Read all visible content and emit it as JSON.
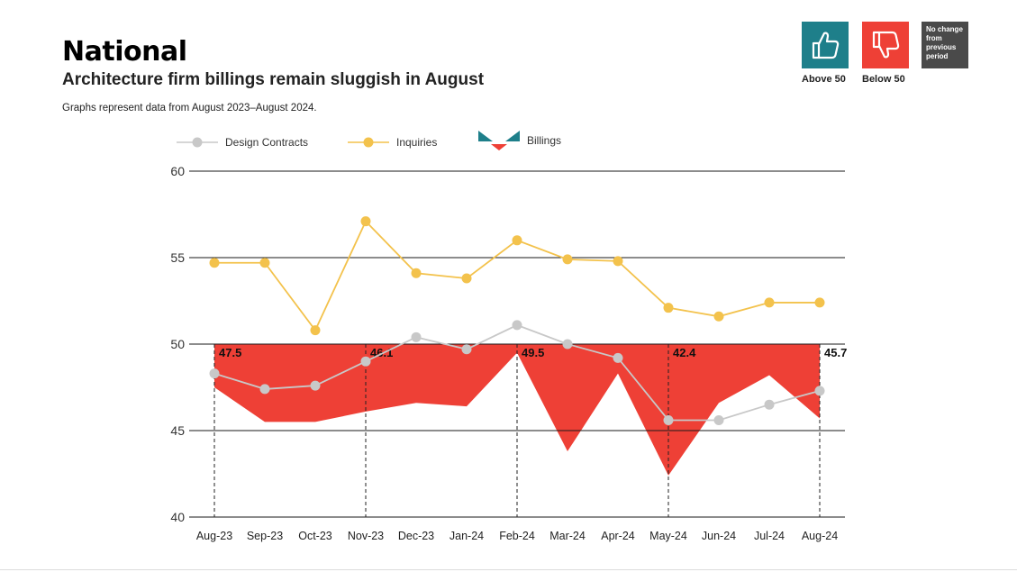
{
  "header": {
    "title": "National",
    "subtitle": "Architecture firm billings remain sluggish in August",
    "note": "Graphs represent data from August 2023–August 2024."
  },
  "key": {
    "above_label": "Above 50",
    "below_label": "Below 50",
    "no_change_label": "No change from previous period",
    "above_color": "#1e7f8a",
    "below_color": "#ee4036",
    "no_change_color": "#4a4a4a"
  },
  "legend": {
    "design_contracts": "Design Contracts",
    "inquiries": "Inquiries",
    "billings": "Billings"
  },
  "chart_data": {
    "type": "line",
    "categories": [
      "Aug-23",
      "Sep-23",
      "Oct-23",
      "Nov-23",
      "Dec-23",
      "Jan-24",
      "Feb-24",
      "Mar-24",
      "Apr-24",
      "May-24",
      "Jun-24",
      "Jul-24",
      "Aug-24"
    ],
    "ylim": [
      40,
      60
    ],
    "yticks": [
      40,
      45,
      50,
      55,
      60
    ],
    "baseline": 50,
    "grid": true,
    "legend_position": "top",
    "series": [
      {
        "name": "Design Contracts",
        "color": "#c8c8c8",
        "values": [
          48.3,
          47.4,
          47.6,
          49.0,
          50.4,
          49.7,
          51.1,
          50.0,
          49.2,
          45.6,
          45.6,
          46.5,
          47.3
        ]
      },
      {
        "name": "Inquiries",
        "color": "#f3c24c",
        "values": [
          54.7,
          54.7,
          50.8,
          57.1,
          54.1,
          53.8,
          56.0,
          54.9,
          54.8,
          52.1,
          51.6,
          52.4,
          52.4
        ]
      },
      {
        "name": "Billings",
        "type": "area",
        "color": "#ee4036",
        "values": [
          47.5,
          45.5,
          45.5,
          46.1,
          46.6,
          46.4,
          49.5,
          43.8,
          48.3,
          42.4,
          46.6,
          48.2,
          45.7
        ]
      }
    ],
    "annotations": [
      {
        "category": "Aug-23",
        "label": "47.5"
      },
      {
        "category": "Nov-23",
        "label": "46.1"
      },
      {
        "category": "Feb-24",
        "label": "49.5"
      },
      {
        "category": "May-24",
        "label": "42.4"
      },
      {
        "category": "Aug-24",
        "label": "45.7"
      }
    ]
  }
}
